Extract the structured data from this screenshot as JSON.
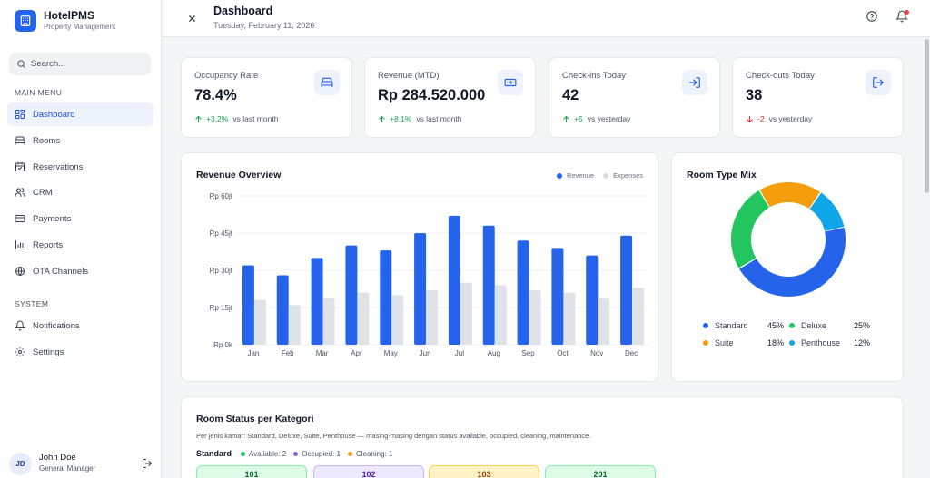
{
  "brand": {
    "title": "HotelPMS",
    "subtitle": "Property Management"
  },
  "search": {
    "placeholder": "Search..."
  },
  "sidebar": {
    "main_label": "MAIN MENU",
    "main_items": [
      {
        "label": "Dashboard",
        "icon": "dashboard-icon",
        "active": true
      },
      {
        "label": "Rooms",
        "icon": "bed-icon"
      },
      {
        "label": "Reservations",
        "icon": "calendar-icon"
      },
      {
        "label": "CRM",
        "icon": "users-icon"
      },
      {
        "label": "Payments",
        "icon": "credit-card-icon"
      },
      {
        "label": "Reports",
        "icon": "bar-chart-icon"
      },
      {
        "label": "OTA Channels",
        "icon": "globe-icon"
      }
    ],
    "system_label": "SYSTEM",
    "system_items": [
      {
        "label": "Notifications",
        "icon": "bell-icon"
      },
      {
        "label": "Settings",
        "icon": "gear-icon"
      }
    ]
  },
  "user": {
    "initials": "JD",
    "name": "John Doe",
    "role": "General Manager"
  },
  "header": {
    "title": "Dashboard",
    "date": "Tuesday, February 11, 2026"
  },
  "stats": [
    {
      "label": "Occupancy Rate",
      "value": "78.4%",
      "delta": "+3.2%",
      "compare": "vs last month",
      "direction": "up",
      "icon": "bed-icon"
    },
    {
      "label": "Revenue (MTD)",
      "value": "Rp 284.520.000",
      "delta": "+8.1%",
      "compare": "vs last month",
      "direction": "up",
      "icon": "banknote-icon"
    },
    {
      "label": "Check-ins Today",
      "value": "42",
      "delta": "+5",
      "compare": "vs yesterday",
      "direction": "up",
      "icon": "login-icon"
    },
    {
      "label": "Check-outs Today",
      "value": "38",
      "delta": "-2",
      "compare": "vs yesterday",
      "direction": "down",
      "icon": "logout-icon"
    }
  ],
  "colors": {
    "primary": "#2563eb",
    "expense": "#e5e7eb",
    "up": "#16a34a",
    "down": "#dc2626"
  },
  "chart_data": [
    {
      "type": "bar",
      "title": "Revenue Overview",
      "categories": [
        "Jan",
        "Feb",
        "Mar",
        "Apr",
        "May",
        "Jun",
        "Jul",
        "Aug",
        "Sep",
        "Oct",
        "Nov",
        "Dec"
      ],
      "series": [
        {
          "name": "Revenue",
          "color": "#2563eb",
          "values": [
            32,
            28,
            35,
            40,
            38,
            45,
            52,
            48,
            42,
            39,
            36,
            44
          ]
        },
        {
          "name": "Expenses",
          "color": "#e5e7eb",
          "values": [
            18,
            16,
            19,
            21,
            20,
            22,
            25,
            24,
            22,
            21,
            19,
            23
          ]
        }
      ],
      "yticks": [
        "Rp 0k",
        "Rp 15jt",
        "Rp 30jt",
        "Rp 45jt",
        "Rp 60jt"
      ],
      "ylim": [
        0,
        60
      ],
      "grid": true,
      "legend": "top-right"
    },
    {
      "type": "pie",
      "title": "Room Type Mix",
      "donut": true,
      "slices": [
        {
          "label": "Standard",
          "value": 45,
          "pct": "45%",
          "color": "#2563eb"
        },
        {
          "label": "Deluxe",
          "value": 25,
          "pct": "25%",
          "color": "#22c55e"
        },
        {
          "label": "Suite",
          "value": 18,
          "pct": "18%",
          "color": "#f59e0b"
        },
        {
          "label": "Penthouse",
          "value": 12,
          "pct": "12%",
          "color": "#0ea5e9"
        }
      ],
      "legend": "bottom"
    }
  ],
  "room_status": {
    "title": "Room Status per Kategori",
    "subtitle": "Per jenis kamar: Standard, Deluxe, Suite, Penthouse — masing-masing dengan status available, occupied, cleaning, maintenance.",
    "category": "Standard",
    "statuses": [
      {
        "label": "Available: 2",
        "color": "#22c55e"
      },
      {
        "label": "Occupied: 1",
        "color": "#8b5cf6"
      },
      {
        "label": "Cleaning: 1",
        "color": "#f59e0b"
      }
    ],
    "rooms": [
      {
        "number": "101",
        "bg": "#dcfce7",
        "border": "#86efac",
        "fg": "#166534"
      },
      {
        "number": "102",
        "bg": "#ede9fe",
        "border": "#c4b5fd",
        "fg": "#5b21b6"
      },
      {
        "number": "103",
        "bg": "#fef3c7",
        "border": "#fcd34d",
        "fg": "#92400e"
      },
      {
        "number": "201",
        "bg": "#dcfce7",
        "border": "#86efac",
        "fg": "#166534"
      }
    ]
  }
}
